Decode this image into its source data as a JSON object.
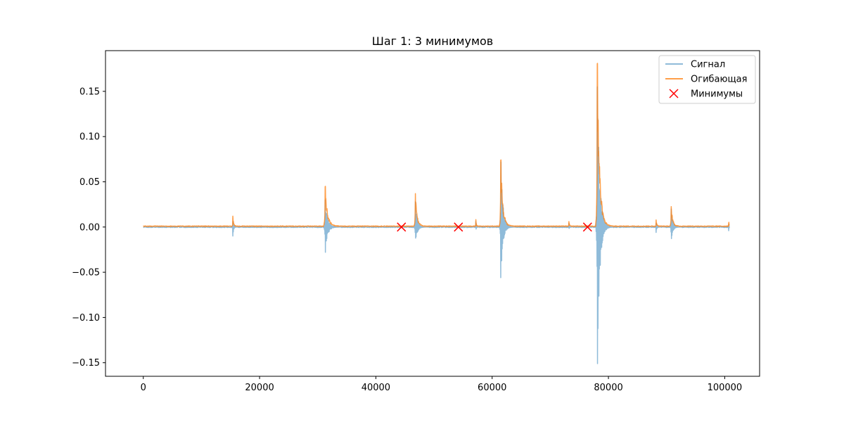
{
  "chart_data": {
    "type": "line",
    "title": "Шаг 1: 3 минимумов",
    "xlabel": "",
    "ylabel": "",
    "xlim": [
      -6500,
      106000
    ],
    "ylim": [
      -0.165,
      0.195
    ],
    "x_ticks": [
      0,
      20000,
      40000,
      60000,
      80000,
      100000
    ],
    "x_tick_labels": [
      "0",
      "20000",
      "40000",
      "60000",
      "80000",
      "100000"
    ],
    "y_ticks": [
      -0.15,
      -0.1,
      -0.05,
      0.0,
      0.05,
      0.1,
      0.15
    ],
    "y_tick_labels": [
      "−0.15",
      "−0.10",
      "−0.05",
      "0.00",
      "0.05",
      "0.10",
      "0.15"
    ],
    "grid": false,
    "legend": {
      "position": "top-right",
      "entries": [
        {
          "label": "Сигнал",
          "marker": "line",
          "color": "#1f77b4"
        },
        {
          "label": "Огибающая",
          "marker": "line",
          "color": "#ff7f0e"
        },
        {
          "label": "Минимумы",
          "marker": "x",
          "color": "#ff0000"
        }
      ]
    },
    "series": [
      {
        "name": "Сигнал",
        "color": "#1f77b4",
        "alpha": 0.5,
        "baseline": 0.0,
        "noise": 0.0012,
        "x_range": [
          0,
          100800
        ],
        "bursts": [
          {
            "x": 15400,
            "width": 600,
            "pos": 0.01,
            "neg": -0.01
          },
          {
            "x": 31300,
            "width": 1800,
            "pos": 0.03,
            "neg": -0.028
          },
          {
            "x": 46800,
            "width": 1400,
            "pos": 0.028,
            "neg": -0.019
          },
          {
            "x": 57200,
            "width": 400,
            "pos": 0.006,
            "neg": -0.004
          },
          {
            "x": 61500,
            "width": 1600,
            "pos": 0.072,
            "neg": -0.056
          },
          {
            "x": 73200,
            "width": 500,
            "pos": 0.004,
            "neg": -0.003
          },
          {
            "x": 78100,
            "width": 1800,
            "pos": 0.155,
            "neg": -0.151
          },
          {
            "x": 88200,
            "width": 600,
            "pos": 0.006,
            "neg": -0.006
          },
          {
            "x": 90800,
            "width": 1200,
            "pos": 0.02,
            "neg": -0.015
          },
          {
            "x": 100700,
            "width": 300,
            "pos": 0.003,
            "neg": -0.004
          }
        ]
      },
      {
        "name": "Огибающая",
        "color": "#ff7f0e",
        "alpha": 0.75,
        "baseline": 0.0005,
        "noise": 0.0008,
        "x_range": [
          0,
          100800
        ],
        "bursts": [
          {
            "x": 15400,
            "width": 600,
            "pos": 0.011
          },
          {
            "x": 31300,
            "width": 1800,
            "pos": 0.044
          },
          {
            "x": 46800,
            "width": 1400,
            "pos": 0.036
          },
          {
            "x": 57200,
            "width": 400,
            "pos": 0.007
          },
          {
            "x": 61500,
            "width": 1600,
            "pos": 0.073
          },
          {
            "x": 73200,
            "width": 500,
            "pos": 0.005
          },
          {
            "x": 78100,
            "width": 1800,
            "pos": 0.18
          },
          {
            "x": 88200,
            "width": 600,
            "pos": 0.007
          },
          {
            "x": 90800,
            "width": 1200,
            "pos": 0.022
          },
          {
            "x": 100700,
            "width": 300,
            "pos": 0.004
          }
        ]
      }
    ],
    "minima": {
      "name": "Минимумы",
      "color": "#ff0000",
      "x": [
        44400,
        54200,
        76400
      ],
      "y": [
        0.0,
        0.0,
        0.0
      ]
    }
  }
}
